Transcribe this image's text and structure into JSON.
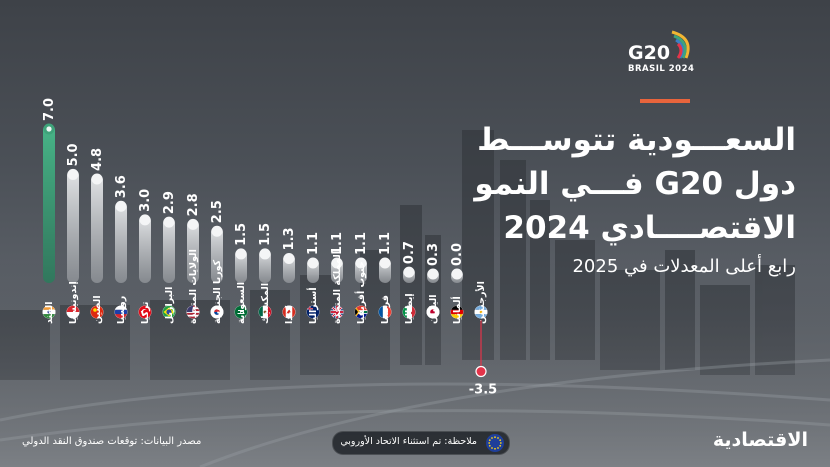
{
  "colors": {
    "accent": "#e8643c",
    "india_bar": "#3fa37a",
    "bar_top": "#d4d6d8",
    "bar_bottom": "#7a7e84",
    "negative_marker": "#e4344a"
  },
  "header": {
    "logo_text": "G20",
    "logo_sub": "BRASIL 2024",
    "title_line1": "السعـــودية تتوســـط",
    "title_line2": "دول G20 فـــي النمو",
    "title_line3": "الاقتصــــادي 2024",
    "subtitle": "رابع أعلى المعدلات في 2025"
  },
  "footer": {
    "source": "مصدر البيانات: توقعات صندوق النقد الدولي",
    "note": "ملاحظة: تم استثناء الاتحاد الأوروبي",
    "note_icon": "eu-flag-icon",
    "brand": "الاقتصادية"
  },
  "chart_data": {
    "type": "bar",
    "title": "",
    "xlabel": "",
    "ylabel": "",
    "ylim": [
      -3.5,
      7.0
    ],
    "grid": false,
    "categories": [
      "الهند",
      "إندونيسيا",
      "الصين",
      "روسيا",
      "تركيا",
      "البرازيل",
      "الولايات المتحدة",
      "كوريا الجنوبية",
      "السعودية",
      "المكسيك",
      "كندا",
      "أستراليا",
      "المملكة المتحدة",
      "جنوب أفريقيا",
      "فرنسا",
      "إيطاليا",
      "اليابان",
      "ألمانيا",
      "الأرجنتين"
    ],
    "value_labels": [
      "7.0",
      "5.0",
      "4.8",
      "3.6",
      "3.0",
      "2.9",
      "2.8",
      "2.5",
      "1.5",
      "1.5",
      "1.3",
      "1.1",
      "1.1",
      "1.1",
      "1.1",
      "0.7",
      "0.3",
      "0.0",
      "-3.5"
    ],
    "values": [
      7.0,
      5.0,
      4.8,
      3.6,
      3.0,
      2.9,
      2.8,
      2.5,
      1.5,
      1.5,
      1.3,
      1.1,
      1.1,
      1.1,
      1.1,
      0.7,
      0.3,
      0.0,
      -3.5
    ],
    "flags": [
      "india-flag-icon",
      "indonesia-flag-icon",
      "china-flag-icon",
      "russia-flag-icon",
      "turkey-flag-icon",
      "brazil-flag-icon",
      "usa-flag-icon",
      "south-korea-flag-icon",
      "saudi-flag-icon",
      "mexico-flag-icon",
      "canada-flag-icon",
      "australia-flag-icon",
      "uk-flag-icon",
      "south-africa-flag-icon",
      "france-flag-icon",
      "italy-flag-icon",
      "japan-flag-icon",
      "germany-flag-icon",
      "argentina-flag-icon"
    ]
  }
}
